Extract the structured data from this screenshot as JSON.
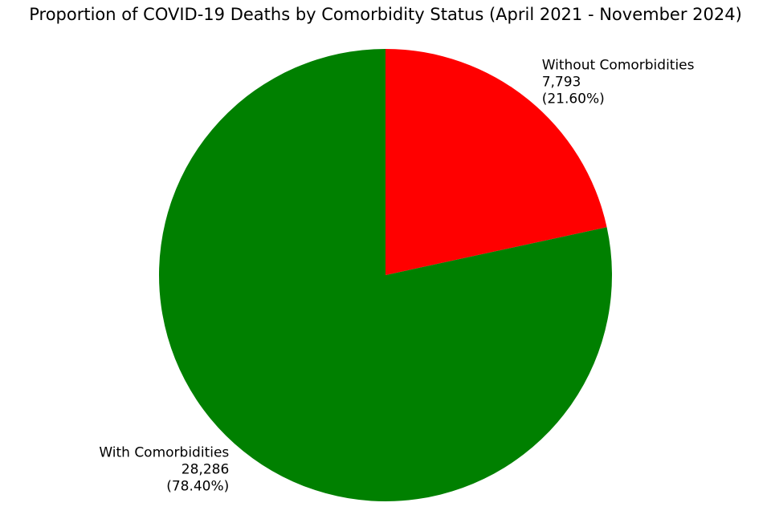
{
  "chart_data": {
    "type": "pie",
    "title": "Proportion of COVID-19 Deaths by Comorbidity Status (April 2021 - November 2024)",
    "slices": [
      {
        "label": "Without Comorbidities",
        "value": 7793,
        "value_text": "7,793",
        "percent": 21.6,
        "percent_text": "(21.60%)",
        "color": "#ff0000"
      },
      {
        "label": "With Comorbidities",
        "value": 28286,
        "value_text": "28,286",
        "percent": 78.4,
        "percent_text": "(78.40%)",
        "color": "#008000"
      }
    ],
    "start_angle": "top",
    "direction": "clockwise",
    "legend": "none"
  }
}
